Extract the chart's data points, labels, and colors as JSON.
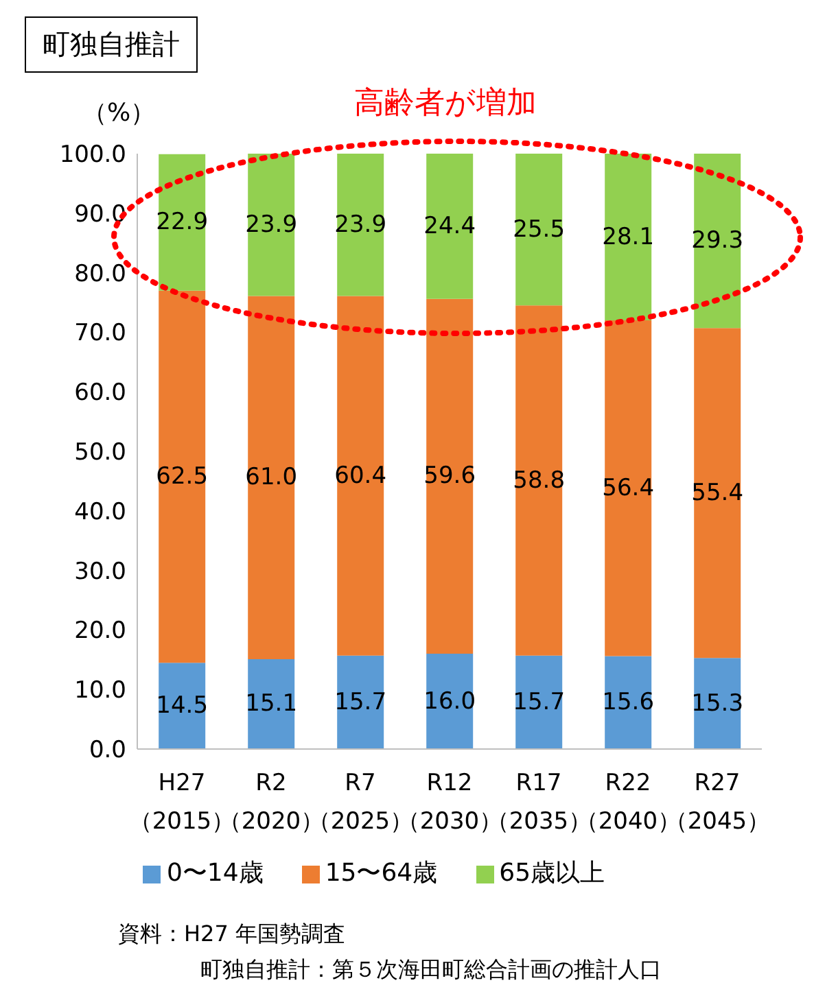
{
  "chart_data": {
    "type": "bar",
    "stacked": true,
    "title": "町独自推計",
    "ylabel": "（%）",
    "categories": [
      "H27\n（2015）",
      "R2\n（2020）",
      "R7\n（2025）",
      "R12\n（2030）",
      "R17\n（2035）",
      "R22\n（2040）",
      "R27\n（2045）"
    ],
    "series": [
      {
        "name": "0〜14歳",
        "color": "#5b9bd5",
        "values": [
          14.5,
          15.1,
          15.7,
          16.0,
          15.7,
          15.6,
          15.3
        ],
        "value_labels": [
          "14.5",
          "15.1",
          "15.7",
          "16.0",
          "15.7",
          "15.6",
          "15.3"
        ]
      },
      {
        "name": "15〜64歳",
        "color": "#ed7d31",
        "values": [
          62.5,
          61.0,
          60.4,
          59.6,
          58.8,
          56.4,
          55.4
        ],
        "value_labels": [
          "62.5",
          "61.0",
          "60.4",
          "59.6",
          "58.8",
          "56.4",
          "55.4"
        ]
      },
      {
        "name": "65歳以上",
        "color": "#92d050",
        "values": [
          22.9,
          23.9,
          23.9,
          24.4,
          25.5,
          28.1,
          29.3
        ],
        "value_labels": [
          "22.9",
          "23.9",
          "23.9",
          "24.4",
          "25.5",
          "28.1",
          "29.3"
        ]
      }
    ],
    "ylim": [
      0,
      100
    ],
    "yticks": [
      {
        "value": 0,
        "label": "0.0"
      },
      {
        "value": 10,
        "label": "10.0"
      },
      {
        "value": 20,
        "label": "20.0"
      },
      {
        "value": 30,
        "label": "30.0"
      },
      {
        "value": 40,
        "label": "40.0"
      },
      {
        "value": 50,
        "label": "50.0"
      },
      {
        "value": 60,
        "label": "60.0"
      },
      {
        "value": 70,
        "label": "70.0"
      },
      {
        "value": 80,
        "label": "80.0"
      },
      {
        "value": 90,
        "label": "90.0"
      },
      {
        "value": 100,
        "label": "100.0"
      }
    ],
    "grid": false,
    "legend": "bottom",
    "annotations": [
      "高齢者が増加",
      "資料：H27 年国勢調査",
      "町独自推計：第５次海田町総合計画の推計人口"
    ]
  }
}
